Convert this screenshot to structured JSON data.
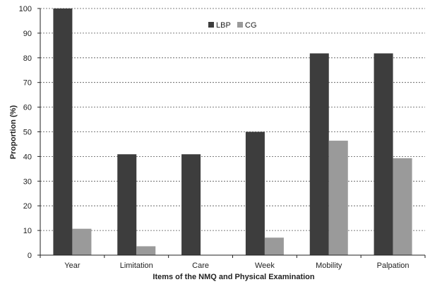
{
  "chart_data": {
    "type": "bar",
    "title": "",
    "xlabel": "Items of the NMQ and Physical Examination",
    "ylabel": "Proportion (%)",
    "ylim": [
      0,
      100
    ],
    "yticks": [
      0,
      10,
      20,
      30,
      40,
      50,
      60,
      70,
      80,
      90,
      100
    ],
    "categories": [
      "Year",
      "Limitation",
      "Care",
      "Week",
      "Mobility",
      "Palpation"
    ],
    "series": [
      {
        "name": "LBP",
        "color": "#3d3d3d",
        "values": [
          100,
          40.9,
          40.9,
          50,
          81.8,
          81.8
        ]
      },
      {
        "name": "CG",
        "color": "#9a9a9a",
        "values": [
          10.7,
          3.6,
          0,
          7.1,
          46.4,
          39.3
        ]
      }
    ],
    "grid": true,
    "legend_position": "top-center"
  }
}
